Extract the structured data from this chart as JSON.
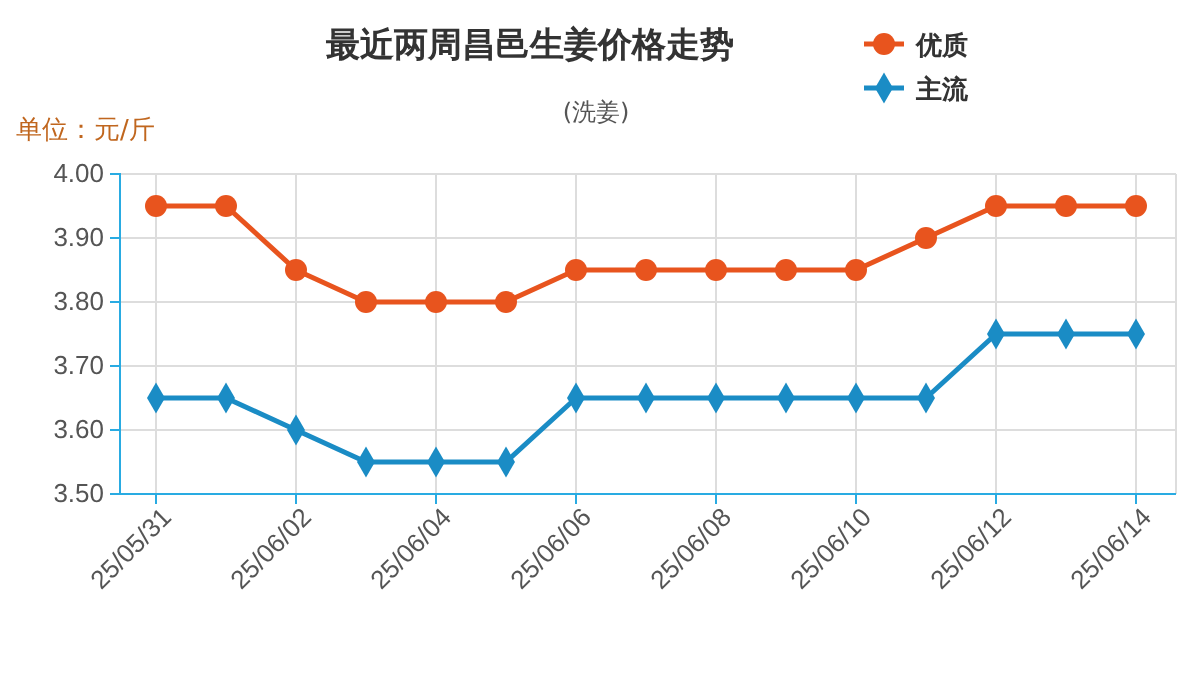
{
  "chart_data": {
    "type": "line",
    "title": "最近两周昌邑生姜价格走势",
    "subtitle": "(洗姜)",
    "ylabel": "单位：元/斤",
    "categories": [
      "25/05/31",
      null,
      "25/06/02",
      null,
      "25/06/04",
      null,
      "25/06/06",
      null,
      "25/06/08",
      null,
      "25/06/10",
      null,
      "25/06/12",
      null,
      "25/06/14"
    ],
    "series": [
      {
        "name": "优质",
        "color": "#e8541e",
        "marker": "circle",
        "values": [
          3.95,
          3.95,
          3.85,
          3.8,
          3.8,
          3.8,
          3.85,
          3.85,
          3.85,
          3.85,
          3.85,
          3.9,
          3.95,
          3.95,
          3.95
        ]
      },
      {
        "name": "主流",
        "color": "#1a8cc5",
        "marker": "diamond",
        "values": [
          3.65,
          3.65,
          3.6,
          3.55,
          3.55,
          3.55,
          3.65,
          3.65,
          3.65,
          3.65,
          3.65,
          3.65,
          3.75,
          3.75,
          3.75
        ]
      }
    ],
    "ylim": [
      3.5,
      4.0
    ],
    "yticks": [
      {
        "value": 3.5,
        "label": "3.50"
      },
      {
        "value": 3.6,
        "label": "3.60"
      },
      {
        "value": 3.7,
        "label": "3.70"
      },
      {
        "value": 3.8,
        "label": "3.80"
      },
      {
        "value": 3.9,
        "label": "3.90"
      },
      {
        "value": 4.0,
        "label": "4.00"
      }
    ],
    "grid": true,
    "legend": "top right",
    "line_style": "solid"
  }
}
